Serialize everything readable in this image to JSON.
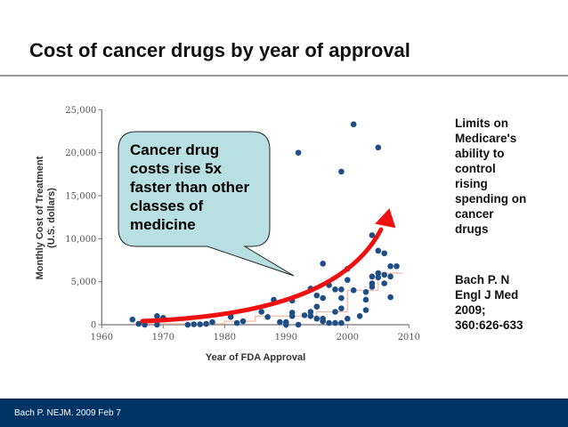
{
  "slide": {
    "title": "Cost of cancer drugs by year of approval",
    "side_note": "Limits on\nMedicare's\nability to\ncontrol\nrising\nspending on\ncancer\ndrugs",
    "citation": "Bach P. N\nEngl J Med\n2009;\n360:626-633",
    "footer": "Bach P. NEJM. 2009 Feb 7",
    "footer_color": "#003366"
  },
  "callout": {
    "text": "Cancer drug\ncosts rise 5x\nfaster than other\nclasses of\nmedicine",
    "fill": "#b8dfe2"
  },
  "chart_data": {
    "type": "scatter",
    "xlabel": "Year of FDA Approval",
    "ylabel": "Monthly Cost of Treatment",
    "ylabel_sub": "(U.S. dollars)",
    "xlim": [
      1960,
      2010
    ],
    "ylim": [
      0,
      25000
    ],
    "xticks": [
      "1960",
      "1970",
      "1980",
      "1990",
      "2000",
      "2010"
    ],
    "yticks": [
      "0",
      "5,000",
      "10,000",
      "15,000",
      "20,000",
      "25,000"
    ],
    "grid": false,
    "point_color": "#1f4e87",
    "trend_arrow_color": "#ee1111",
    "points": [
      [
        1965,
        600
      ],
      [
        1966,
        100
      ],
      [
        1967,
        0
      ],
      [
        1969,
        1000
      ],
      [
        1970,
        800
      ],
      [
        1969,
        0
      ],
      [
        1974,
        0
      ],
      [
        1975,
        50
      ],
      [
        1976,
        50
      ],
      [
        1977,
        100
      ],
      [
        1978,
        300
      ],
      [
        1981,
        900
      ],
      [
        1982,
        200
      ],
      [
        1983,
        400
      ],
      [
        1986,
        1500
      ],
      [
        1987,
        900
      ],
      [
        1988,
        2900
      ],
      [
        1989,
        300
      ],
      [
        1990,
        300
      ],
      [
        1990,
        0
      ],
      [
        1991,
        2800
      ],
      [
        1991,
        1400
      ],
      [
        1991,
        1000
      ],
      [
        1992,
        20000
      ],
      [
        1992,
        0
      ],
      [
        1993,
        1100
      ],
      [
        1994,
        4200
      ],
      [
        1994,
        1500
      ],
      [
        1994,
        1000
      ],
      [
        1995,
        3400
      ],
      [
        1995,
        2100
      ],
      [
        1995,
        700
      ],
      [
        1996,
        7100
      ],
      [
        1996,
        3100
      ],
      [
        1996,
        700
      ],
      [
        1996,
        400
      ],
      [
        1997,
        4600
      ],
      [
        1997,
        200
      ],
      [
        1998,
        4100
      ],
      [
        1998,
        1500
      ],
      [
        1998,
        200
      ],
      [
        1999,
        17800
      ],
      [
        1999,
        4100
      ],
      [
        1999,
        3100
      ],
      [
        1999,
        1900
      ],
      [
        1999,
        200
      ],
      [
        2000,
        6500
      ],
      [
        2000,
        5200
      ],
      [
        2000,
        700
      ],
      [
        2001,
        23300
      ],
      [
        2001,
        4000
      ],
      [
        2002,
        1000
      ],
      [
        2003,
        3800
      ],
      [
        2003,
        2900
      ],
      [
        2003,
        1700
      ],
      [
        2004,
        10400
      ],
      [
        2004,
        5600
      ],
      [
        2004,
        4800
      ],
      [
        2004,
        4400
      ],
      [
        2005,
        20600
      ],
      [
        2005,
        8600
      ],
      [
        2005,
        6000
      ],
      [
        2005,
        5500
      ],
      [
        2006,
        8300
      ],
      [
        2006,
        5800
      ],
      [
        2006,
        4800
      ],
      [
        2007,
        6800
      ],
      [
        2007,
        5600
      ],
      [
        2007,
        3200
      ],
      [
        2008,
        6800
      ]
    ]
  }
}
